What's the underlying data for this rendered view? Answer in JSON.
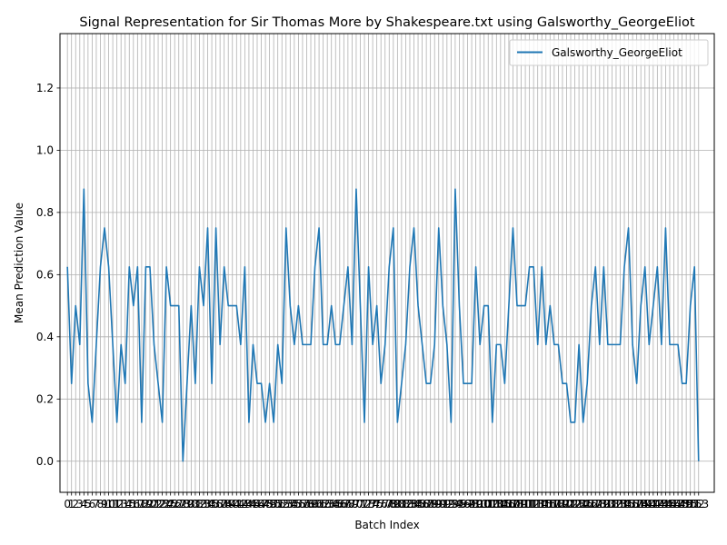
{
  "chart_data": {
    "type": "line",
    "title": "Signal Representation for Sir Thomas More by Shakespeare.txt using Galsworthy_GeorgeEliot",
    "xlabel": "Batch Index",
    "ylabel": "Mean Prediction Value",
    "xlim": [
      -1.8,
      156.8
    ],
    "ylim": [
      -0.1,
      1.375
    ],
    "yticks": [
      0.0,
      0.2,
      0.4,
      0.6,
      0.8,
      1.0,
      1.2
    ],
    "ytick_labels": [
      "0.0",
      "0.2",
      "0.4",
      "0.6",
      "0.8",
      "1.0",
      "1.2"
    ],
    "grid": true,
    "legend_position": "upper right",
    "series": [
      {
        "name": "Galsworthy_GeorgeEliot",
        "color": "#1f77b4",
        "x": [
          0,
          1,
          2,
          3,
          4,
          5,
          6,
          7,
          8,
          9,
          10,
          11,
          12,
          13,
          14,
          15,
          16,
          17,
          18,
          19,
          20,
          21,
          22,
          23,
          24,
          25,
          26,
          27,
          28,
          29,
          30,
          31,
          32,
          33,
          34,
          35,
          36,
          37,
          38,
          39,
          40,
          41,
          42,
          43,
          44,
          45,
          46,
          47,
          48,
          49,
          50,
          51,
          52,
          53,
          54,
          55,
          56,
          57,
          58,
          59,
          60,
          61,
          62,
          63,
          64,
          65,
          66,
          67,
          68,
          69,
          70,
          71,
          72,
          73,
          74,
          75,
          76,
          77,
          78,
          79,
          80,
          81,
          82,
          83,
          84,
          85,
          86,
          87,
          88,
          89,
          90,
          91,
          92,
          93,
          94,
          95,
          96,
          97,
          98,
          99,
          100,
          101,
          102,
          103,
          104,
          105,
          106,
          107,
          108,
          109,
          110,
          111,
          112,
          113,
          114,
          115,
          116,
          117,
          118,
          119,
          120,
          121,
          122,
          123,
          124,
          125,
          126,
          127,
          128,
          129,
          130,
          131,
          132,
          133,
          134,
          135,
          136,
          137,
          138,
          139,
          140,
          141,
          142,
          143,
          144,
          145,
          146,
          147,
          148,
          149,
          150,
          151,
          152,
          153
        ],
        "values": [
          0.625,
          0.25,
          0.5,
          0.375,
          0.875,
          0.25,
          0.125,
          0.375,
          0.625,
          0.75,
          0.625,
          0.375,
          0.125,
          0.375,
          0.25,
          0.625,
          0.5,
          0.625,
          0.125,
          0.625,
          0.625,
          0.375,
          0.25,
          0.125,
          0.625,
          0.5,
          0.5,
          0.5,
          0.0,
          0.25,
          0.5,
          0.25,
          0.625,
          0.5,
          0.75,
          0.25,
          0.75,
          0.375,
          0.625,
          0.5,
          0.5,
          0.5,
          0.375,
          0.625,
          0.125,
          0.375,
          0.25,
          0.25,
          0.125,
          0.25,
          0.125,
          0.375,
          0.25,
          0.75,
          0.5,
          0.375,
          0.5,
          0.375,
          0.375,
          0.375,
          0.625,
          0.75,
          0.375,
          0.375,
          0.5,
          0.375,
          0.375,
          0.5,
          0.625,
          0.375,
          0.875,
          0.5,
          0.125,
          0.625,
          0.375,
          0.5,
          0.25,
          0.375,
          0.625,
          0.75,
          0.125,
          0.25,
          0.375,
          0.625,
          0.75,
          0.5,
          0.375,
          0.25,
          0.25,
          0.375,
          0.75,
          0.5,
          0.375,
          0.125,
          0.875,
          0.5,
          0.25,
          0.25,
          0.25,
          0.625,
          0.375,
          0.5,
          0.5,
          0.125,
          0.375,
          0.375,
          0.25,
          0.5,
          0.75,
          0.5,
          0.5,
          0.5,
          0.625,
          0.625,
          0.375,
          0.625,
          0.375,
          0.5,
          0.375,
          0.375,
          0.25,
          0.25,
          0.125,
          0.125,
          0.375,
          0.125,
          0.25,
          0.5,
          0.625,
          0.375,
          0.625,
          0.375,
          0.375,
          0.375,
          0.375,
          0.625,
          0.75,
          0.375,
          0.25,
          0.5,
          0.625,
          0.375,
          0.5,
          0.625,
          0.375,
          0.75,
          0.375,
          0.375,
          0.375,
          0.25,
          0.25,
          0.5,
          0.625,
          0.0
        ]
      }
    ]
  }
}
